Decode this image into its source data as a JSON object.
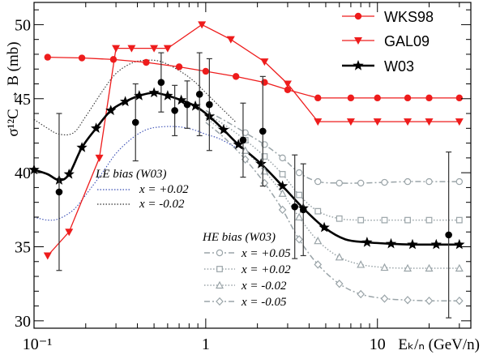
{
  "chart_data": {
    "type": "line",
    "xscale": "log",
    "xlim": [
      0.1,
      35
    ],
    "ylim": [
      29.5,
      51.5
    ],
    "x_ticks": [
      0.1,
      1,
      10
    ],
    "x_tick_labels": [
      "10⁻¹",
      "1",
      "10"
    ],
    "y_ticks": [
      30,
      35,
      40,
      45,
      50
    ],
    "ylabel": "σ¹²C → B (mb)",
    "xlabel": "Eₖ/ₙ (GeV/n)",
    "colors": {
      "wks98": "#ee1c1c",
      "gal09": "#ee1c1c",
      "w03": "#000000",
      "le_bias": "#3a4fb5",
      "he_bias": "#9aa4a8",
      "data": "#000000",
      "errbar": "#333333"
    },
    "series": [
      {
        "name": "WKS98",
        "marker": "circle",
        "style": "solid",
        "x": [
          0.12,
          0.19,
          0.29,
          0.45,
          0.7,
          1.0,
          1.5,
          2.2,
          3.0,
          4.5,
          7.0,
          10.0,
          15.0,
          20.0,
          30.0
        ],
        "y": [
          47.8,
          47.75,
          47.65,
          47.45,
          47.15,
          46.85,
          46.5,
          46.1,
          45.6,
          45.05,
          45.05,
          45.05,
          45.05,
          45.05,
          45.05
        ]
      },
      {
        "name": "GAL09",
        "marker": "triangle-down",
        "style": "solid",
        "x": [
          0.12,
          0.16,
          0.24,
          0.3,
          0.37,
          0.5,
          0.6,
          0.95,
          1.4,
          2.2,
          3.0,
          4.5,
          7.0,
          10.0,
          15.0,
          20.0,
          30.0
        ],
        "y": [
          34.4,
          36.0,
          41.0,
          48.4,
          48.4,
          48.4,
          48.4,
          50.0,
          49.0,
          47.5,
          46.0,
          43.45,
          43.45,
          43.45,
          43.45,
          43.45,
          43.45
        ]
      },
      {
        "name": "W03",
        "marker": "star",
        "style": "solid-thick",
        "x": [
          0.1,
          0.12,
          0.14,
          0.16,
          0.19,
          0.23,
          0.28,
          0.34,
          0.41,
          0.5,
          0.6,
          0.72,
          0.87,
          1.05,
          1.27,
          1.55,
          2.1,
          2.8,
          3.7,
          4.9,
          6.5,
          8.7,
          12.0,
          16.0,
          22.0,
          30.0
        ],
        "y": [
          40.2,
          39.9,
          39.5,
          39.9,
          41.7,
          43.0,
          44.2,
          44.8,
          45.2,
          45.4,
          45.2,
          44.9,
          44.5,
          43.8,
          42.9,
          41.9,
          40.6,
          39.1,
          37.6,
          36.3,
          35.5,
          35.3,
          35.2,
          35.15,
          35.15,
          35.15
        ],
        "marker_x": [
          0.1,
          0.14,
          0.16,
          0.19,
          0.23,
          0.28,
          0.34,
          0.41,
          0.5,
          0.6,
          0.72,
          0.87,
          1.05,
          1.27,
          1.55,
          2.1,
          2.8,
          3.7,
          4.9,
          8.7,
          12.0,
          16.0,
          22.0,
          30.0
        ],
        "marker_y": [
          40.2,
          39.5,
          39.9,
          41.7,
          43.0,
          44.2,
          44.8,
          45.2,
          45.4,
          45.2,
          44.9,
          44.5,
          43.8,
          42.9,
          41.9,
          40.6,
          39.1,
          37.6,
          36.3,
          35.3,
          35.2,
          35.15,
          35.15,
          35.15
        ]
      }
    ],
    "le_bias": {
      "title": "LE bias (W03)",
      "curves": [
        {
          "label": "x = +0.02",
          "style": "dotted-blue",
          "x": [
            0.1,
            0.12,
            0.14,
            0.17,
            0.2,
            0.25,
            0.3,
            0.37,
            0.45,
            0.55,
            0.7,
            0.85,
            1.0,
            1.2,
            1.5
          ],
          "y": [
            37.0,
            36.8,
            36.9,
            37.5,
            38.5,
            40.0,
            41.3,
            42.3,
            42.9,
            43.1,
            43.1,
            42.9,
            42.6,
            42.3,
            41.7
          ]
        },
        {
          "label": "x = -0.02",
          "style": "dotted-black",
          "x": [
            0.1,
            0.12,
            0.14,
            0.17,
            0.2,
            0.25,
            0.3,
            0.37,
            0.45,
            0.55,
            0.7,
            0.85,
            1.0,
            1.2,
            1.5
          ],
          "y": [
            43.6,
            43.0,
            42.6,
            42.7,
            43.8,
            45.5,
            46.7,
            47.4,
            47.6,
            47.5,
            46.9,
            46.2,
            45.4,
            44.5,
            43.4
          ]
        }
      ]
    },
    "he_bias": {
      "title": "HE bias (W03)",
      "curves": [
        {
          "label": "x = +0.05",
          "marker": "circle-open",
          "style": "dashdot",
          "x": [
            1.0,
            1.3,
            1.7,
            2.2,
            2.8,
            3.5,
            4.5,
            6.0,
            8.0,
            11.0,
            15.0,
            20.0,
            30.0
          ],
          "y": [
            44.2,
            43.5,
            42.7,
            41.9,
            41.0,
            40.0,
            39.4,
            39.3,
            39.3,
            39.35,
            39.4,
            39.4,
            39.4
          ]
        },
        {
          "label": "x = +0.02",
          "marker": "square-open",
          "style": "dotted",
          "x": [
            1.0,
            1.3,
            1.7,
            2.2,
            2.8,
            3.5,
            4.5,
            6.0,
            8.0,
            11.0,
            15.0,
            20.0,
            30.0
          ],
          "y": [
            44.0,
            43.2,
            42.2,
            41.1,
            39.9,
            38.5,
            37.4,
            36.9,
            36.8,
            36.8,
            36.8,
            36.8,
            36.8
          ]
        },
        {
          "label": "x = -0.02",
          "marker": "triangle-open",
          "style": "dotted",
          "x": [
            1.0,
            1.3,
            1.7,
            2.2,
            2.8,
            3.5,
            4.5,
            6.0,
            8.0,
            11.0,
            15.0,
            20.0,
            30.0
          ],
          "y": [
            43.7,
            42.7,
            41.5,
            40.1,
            38.6,
            37.0,
            35.4,
            34.3,
            33.8,
            33.6,
            33.55,
            33.55,
            33.55
          ]
        },
        {
          "label": "x = -0.05",
          "marker": "diamond-open",
          "style": "dashdot",
          "x": [
            1.0,
            1.3,
            1.7,
            2.2,
            2.8,
            3.5,
            4.5,
            6.0,
            8.0,
            11.0,
            15.0,
            20.0,
            30.0
          ],
          "y": [
            43.4,
            42.3,
            40.9,
            39.3,
            37.5,
            35.5,
            33.8,
            32.5,
            31.8,
            31.5,
            31.4,
            31.35,
            31.35
          ]
        }
      ]
    },
    "data_points": [
      {
        "x": 0.14,
        "y": 38.7,
        "err": 5.3
      },
      {
        "x": 0.39,
        "y": 43.4,
        "err": 2.6
      },
      {
        "x": 0.55,
        "y": 46.1,
        "err": 2.0
      },
      {
        "x": 0.66,
        "y": 44.2,
        "err": 1.7
      },
      {
        "x": 0.78,
        "y": 44.6,
        "err": 1.6
      },
      {
        "x": 0.92,
        "y": 45.3,
        "err": 2.8
      },
      {
        "x": 1.05,
        "y": 44.6,
        "err": 3.1
      },
      {
        "x": 1.65,
        "y": 42.2,
        "err": 2.5
      },
      {
        "x": 2.15,
        "y": 42.8,
        "err": 3.7
      },
      {
        "x": 3.3,
        "y": 37.7,
        "err": 3.5
      },
      {
        "x": 3.7,
        "y": 37.5,
        "err": 3.1
      },
      {
        "x": 26.0,
        "y": 35.8,
        "err": 5.6
      }
    ],
    "legend": {
      "placement": "top-right",
      "entries": [
        "WKS98",
        "GAL09",
        "W03"
      ]
    }
  }
}
